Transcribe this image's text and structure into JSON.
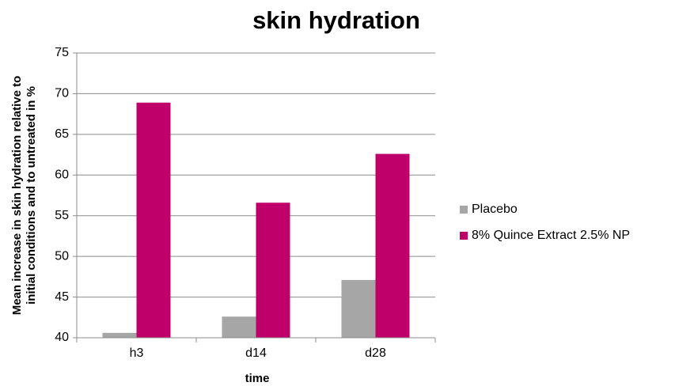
{
  "chart_data": {
    "type": "bar",
    "title": "skin hydration",
    "ylabel": [
      "Mean increase in skin hydration relative to",
      "initial conditions and to untreated in %"
    ],
    "xlabel": "time",
    "categories": [
      "h3",
      "d14",
      "d28"
    ],
    "series": [
      {
        "name": "Placebo",
        "color": "#a6a6a6",
        "values": [
          40.6,
          42.6,
          47.1
        ]
      },
      {
        "name": "8% Quince Extract 2.5% NP",
        "color": "#c0006a",
        "values": [
          68.9,
          56.6,
          62.6
        ]
      }
    ],
    "ylim": [
      40,
      75
    ],
    "yticks": [
      40,
      45,
      50,
      55,
      60,
      65,
      70,
      75
    ],
    "grid": true,
    "legend": "right"
  }
}
